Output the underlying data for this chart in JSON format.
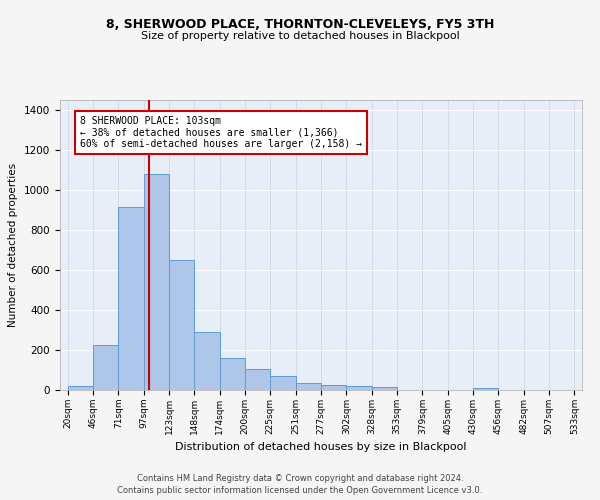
{
  "title1": "8, SHERWOOD PLACE, THORNTON-CLEVELEYS, FY5 3TH",
  "title2": "Size of property relative to detached houses in Blackpool",
  "xlabel": "Distribution of detached houses by size in Blackpool",
  "ylabel": "Number of detached properties",
  "bar_heights": [
    20,
    225,
    915,
    1080,
    650,
    290,
    160,
    105,
    70,
    35,
    25,
    20,
    15,
    0,
    0,
    0,
    10,
    0,
    0,
    0
  ],
  "bar_labels": [
    "20sqm",
    "46sqm",
    "71sqm",
    "97sqm",
    "123sqm",
    "148sqm",
    "174sqm",
    "200sqm",
    "225sqm",
    "251sqm",
    "277sqm",
    "302sqm",
    "328sqm",
    "353sqm",
    "379sqm",
    "405sqm",
    "430sqm",
    "456sqm",
    "482sqm",
    "507sqm",
    "533sqm"
  ],
  "bar_color": "#aec6e8",
  "bar_edgecolor": "#5b9bd5",
  "vline_color": "#cc0000",
  "annotation_text": "8 SHERWOOD PLACE: 103sqm\n← 38% of detached houses are smaller (1,366)\n60% of semi-detached houses are larger (2,158) →",
  "annotation_box_color": "#ffffff",
  "annotation_box_edge": "#cc0000",
  "ylim": [
    0,
    1450
  ],
  "yticks": [
    0,
    200,
    400,
    600,
    800,
    1000,
    1200,
    1400
  ],
  "plot_bg_color": "#e8eef8",
  "fig_bg_color": "#f5f5f5",
  "footer1": "Contains HM Land Registry data © Crown copyright and database right 2024.",
  "footer2": "Contains public sector information licensed under the Open Government Licence v3.0."
}
